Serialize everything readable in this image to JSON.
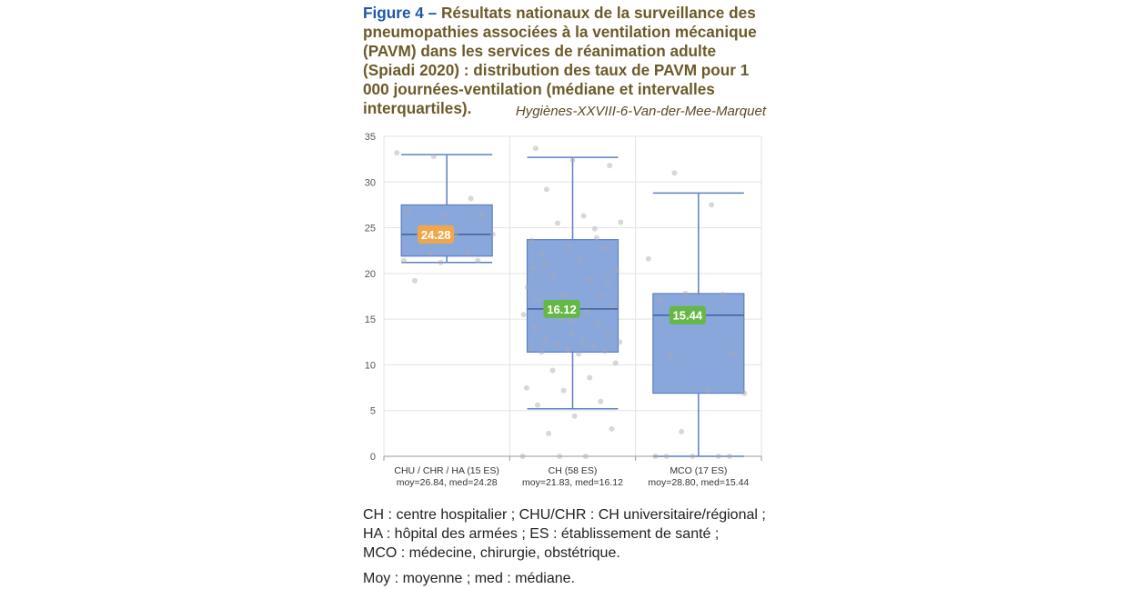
{
  "caption": {
    "figure_label": "Figure 4 –",
    "text": "Résultats nationaux de la surveillance des pneumopathies associées à la ventilation mécanique (PAVM) dans les services de réanimation adulte (Spiadi 2020) : distribution des taux de PAVM pour 1 000 journées-ventilation (médiane et intervalles interquartiles)."
  },
  "credit": "Hygiènes-XXVIII-6-Van-der-Mee-Marquet",
  "legend": {
    "line1": "CH : centre hospitalier ; CHU/CHR : CH universitaire/régional ;",
    "line2": "HA : hôpital des armées ; ES : établissement de santé ;",
    "line3": "MCO : médecine, chirurgie, obstétrique.",
    "line4": "Moy : moyenne ; med : médiane."
  },
  "colors": {
    "box_fill": "#8aa7dc",
    "box_stroke": "#5d7fc4",
    "grid": "#e3e3e3",
    "point": "#a9a9a9",
    "badge_orange": "#f0a64a",
    "badge_green": "#65b846"
  },
  "chart_data": {
    "type": "box",
    "ylim": [
      0,
      35
    ],
    "yticks": [
      0,
      5,
      10,
      15,
      20,
      25,
      30,
      35
    ],
    "grid": true,
    "categories": [
      {
        "label": "CHU / CHR / HA (15 ES)",
        "sublabel": "moy=26.84, med=24.28",
        "whisker_low": 21.2,
        "q1": 21.9,
        "median": 24.28,
        "q3": 27.5,
        "whisker_high": 33.0,
        "badge": "24.28",
        "badge_color": "orange",
        "points": [
          33.2,
          32.8,
          28.2,
          26.9,
          26.4,
          26.5,
          24.3,
          24.2,
          24.3,
          22.2,
          22.3,
          21.4,
          21.2,
          21.4,
          19.2
        ]
      },
      {
        "label": "CH (58 ES)",
        "sublabel": "moy=21.83, med=16.12",
        "whisker_low": 5.2,
        "q1": 11.4,
        "median": 16.12,
        "q3": 23.7,
        "whisker_high": 32.7,
        "badge": "16.12",
        "badge_color": "green",
        "points": [
          33.7,
          32.4,
          31.8,
          29.2,
          26.3,
          25.6,
          25.5,
          24.9,
          23.6,
          23.0,
          22.8,
          22.2,
          21.4,
          20.3,
          19.7,
          19.3,
          18.5,
          17.7,
          17.6,
          17.1,
          16.8,
          16.5,
          16.0,
          15.8,
          15.5,
          15.0,
          14.4,
          14.2,
          13.5,
          13.2,
          12.8,
          12.6,
          12.5,
          12.3,
          12.1,
          11.8,
          11.6,
          11.5,
          11.4,
          11.2,
          10.2,
          9.4,
          8.6,
          7.5,
          7.2,
          6.0,
          5.6,
          4.4,
          3.0,
          2.5,
          0.0,
          0.0,
          0.0,
          23.9,
          20.6,
          14.8,
          19.0,
          21.0
        ]
      },
      {
        "label": "MCO (17 ES)",
        "sublabel": "moy=28.80, med=15.44",
        "whisker_low": 0.0,
        "q1": 6.9,
        "median": 15.44,
        "q3": 17.8,
        "whisker_high": 28.8,
        "badge": "15.44",
        "badge_color": "green",
        "points": [
          31.0,
          27.5,
          21.6,
          17.8,
          17.7,
          17.1,
          15.4,
          11.3,
          11.1,
          7.2,
          6.9,
          2.7,
          0.0,
          0.0,
          0.0,
          0.0,
          0.0
        ]
      }
    ]
  }
}
